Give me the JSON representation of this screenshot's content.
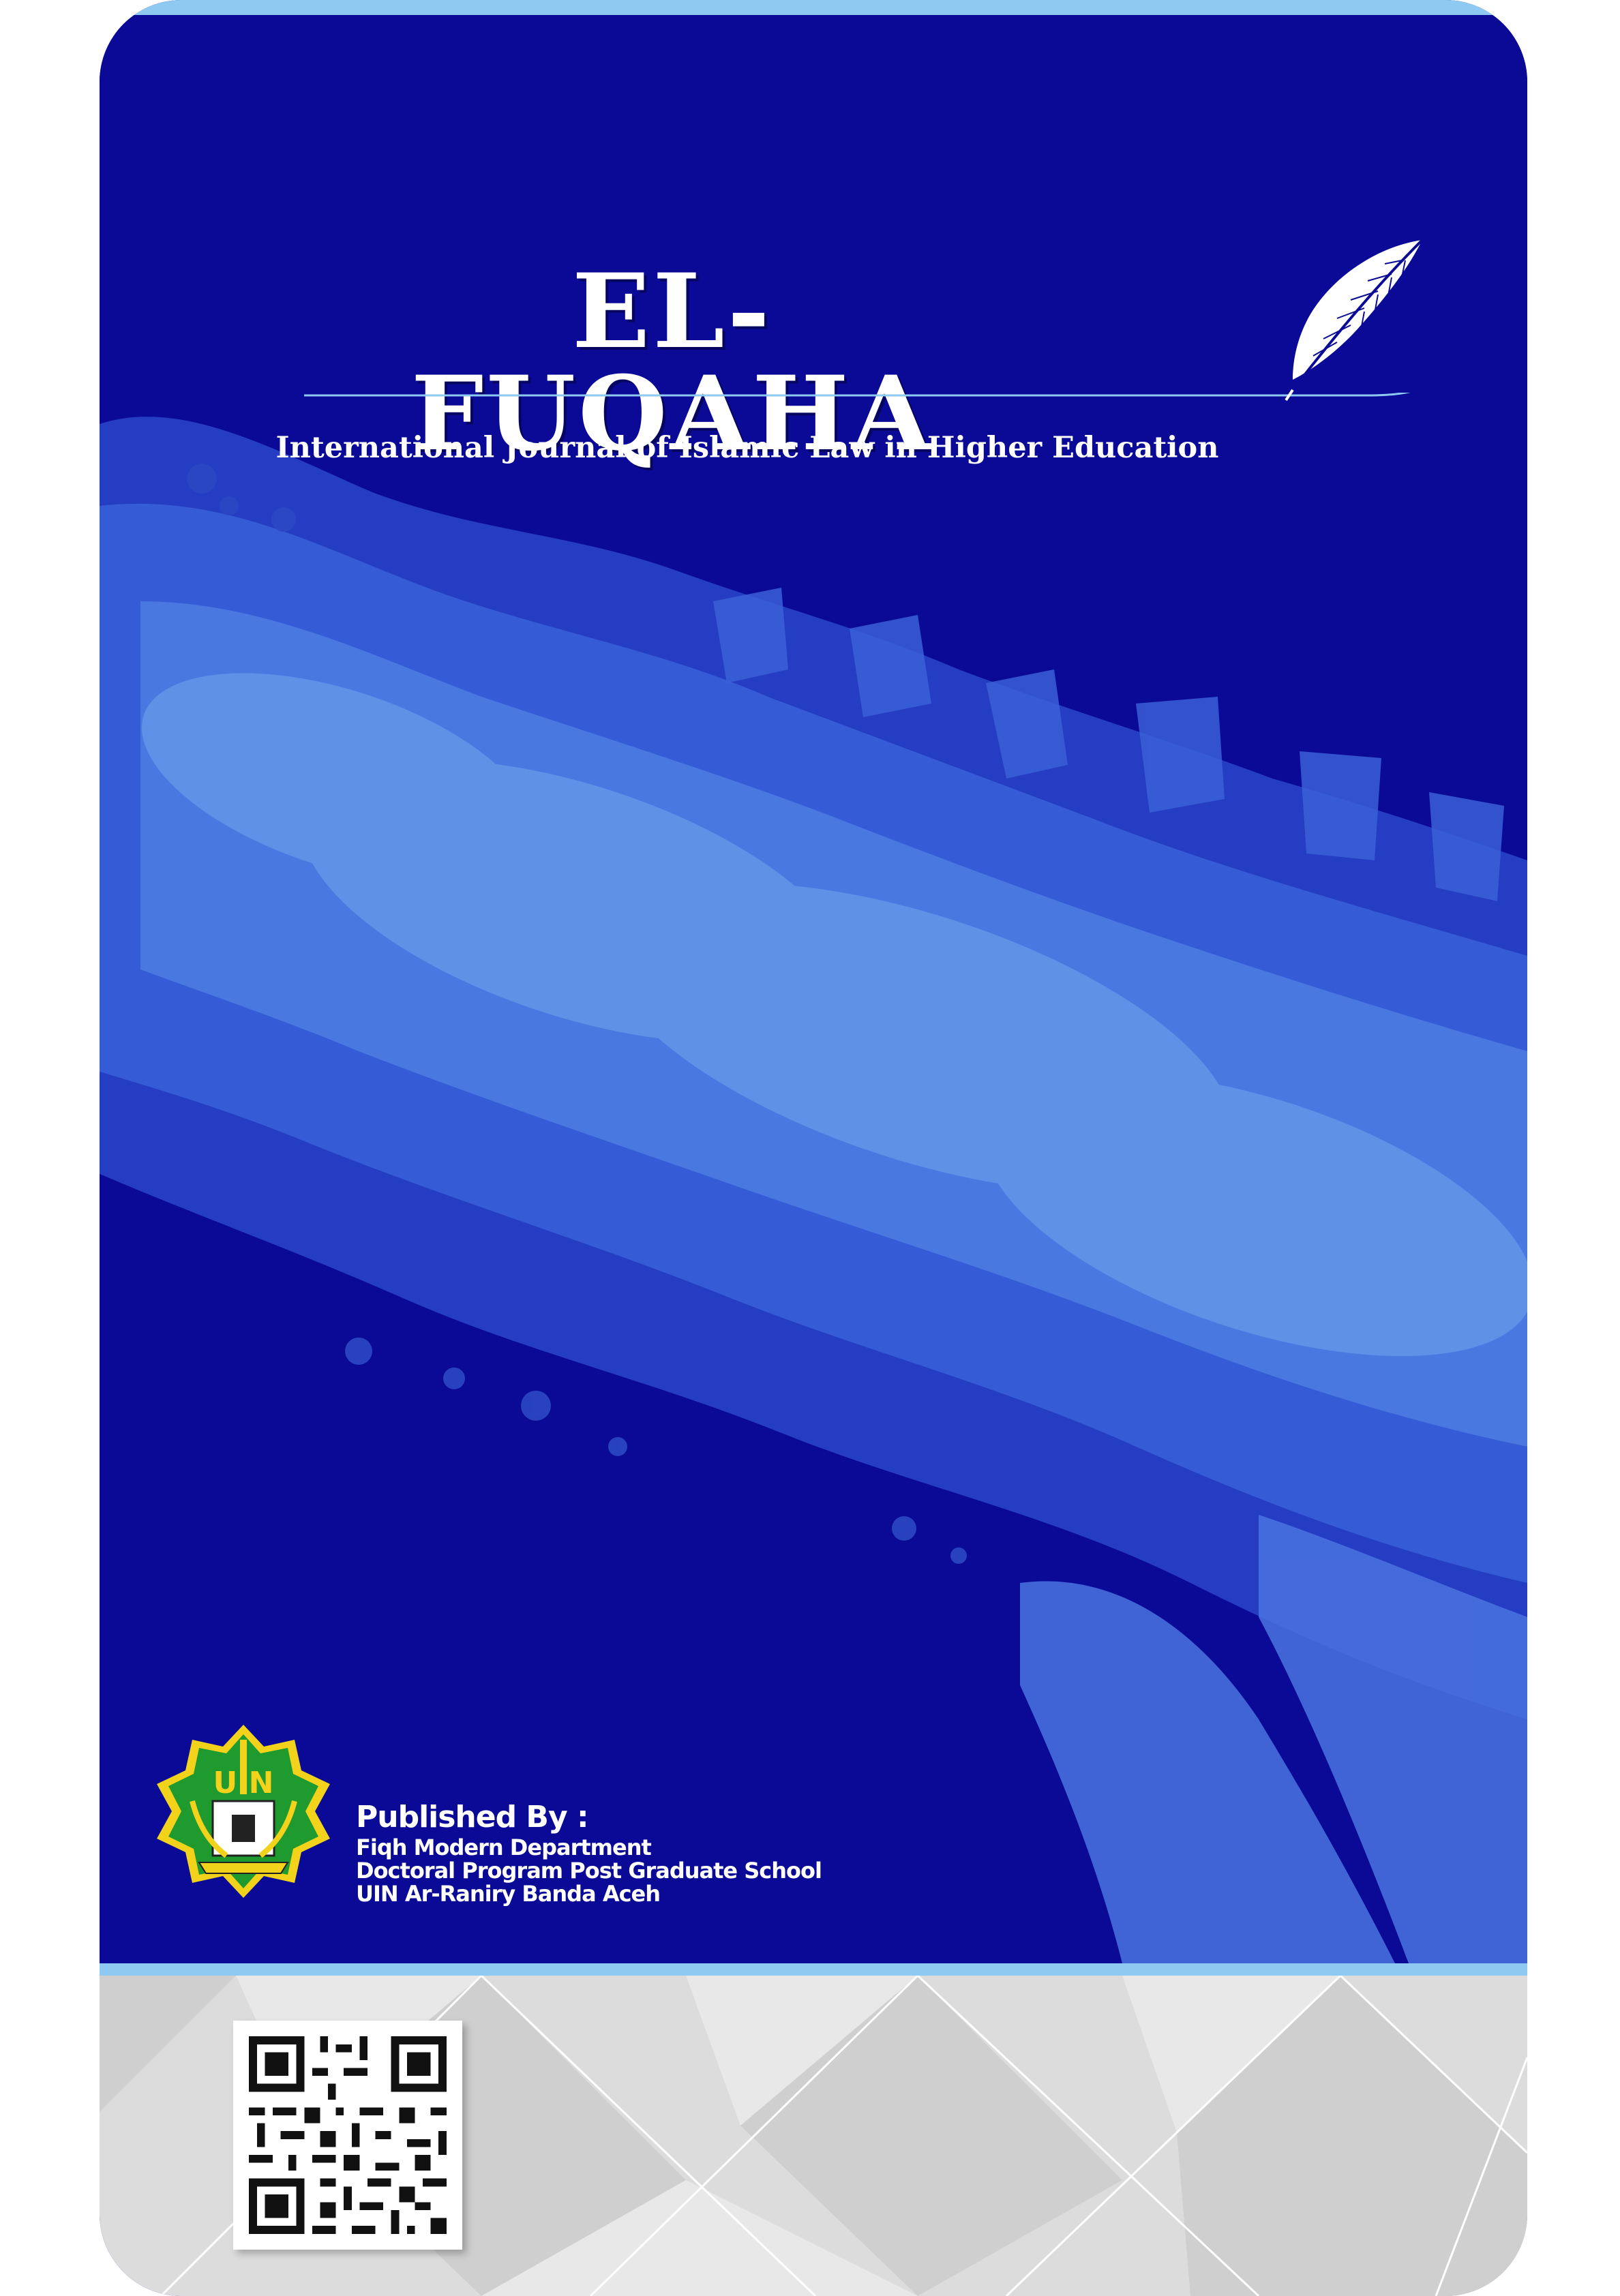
{
  "journal": {
    "title": "EL-FUQAHA",
    "subtitle": "International Journal of Islamic Law in Higher Education"
  },
  "publisher": {
    "heading": "Published By :",
    "lines": [
      "Fiqh Modern Department",
      "Doctoral Program Post Graduate School",
      "UIN Ar-Raniry Banda Aceh"
    ]
  },
  "logo": {
    "text": "UIN"
  },
  "icons": {
    "feather": "feather-quill-icon",
    "logo": "uin-ar-raniry-emblem",
    "qr": "qr-code"
  },
  "colors": {
    "primary_blue": "#0a0a96",
    "accent_light_blue": "#8ec9f2",
    "footer_grey": "#dcdcdc",
    "logo_green": "#1f9a2e",
    "logo_yellow": "#f2d21b"
  }
}
